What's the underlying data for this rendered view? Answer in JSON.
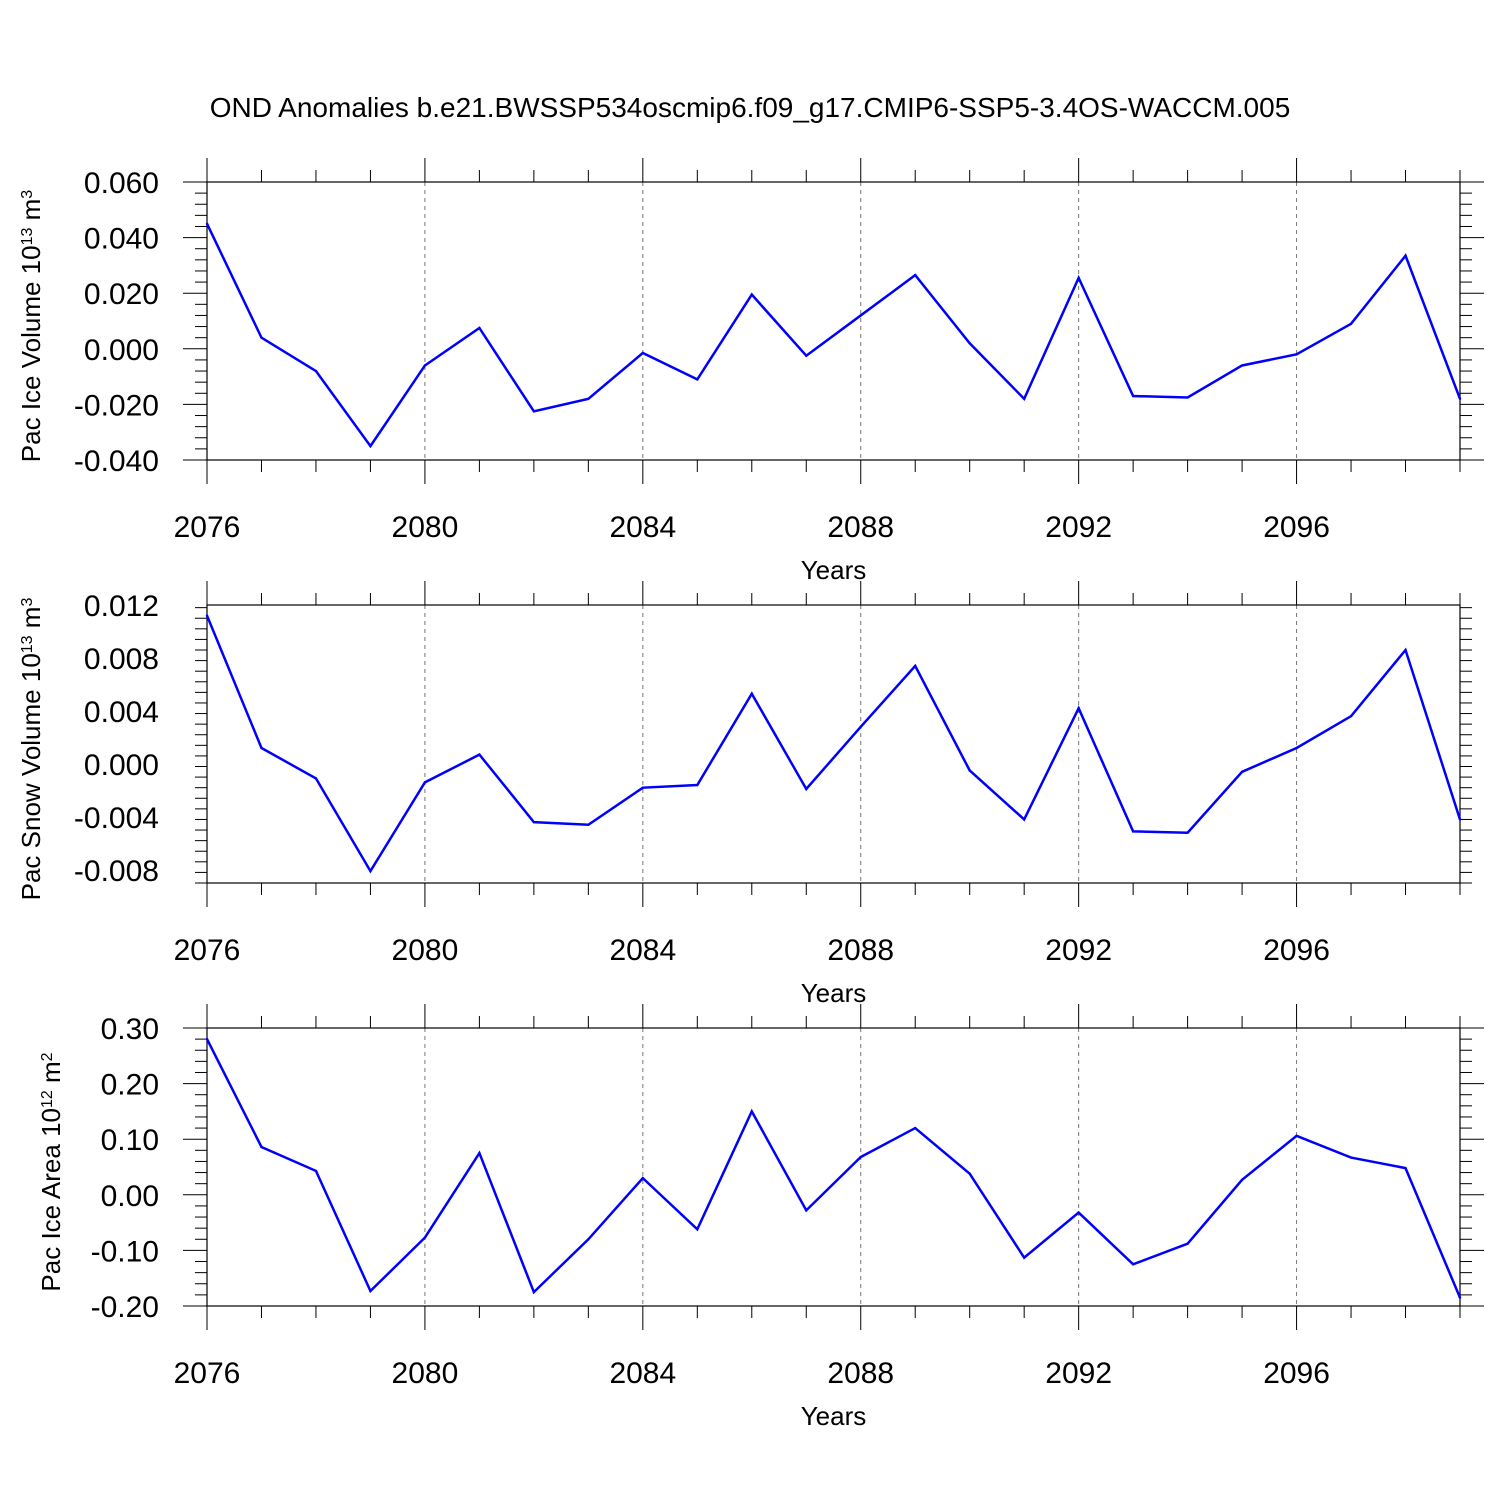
{
  "title": "OND Anomalies b.e21.BWSSP534oscmip6.f09_g17.CMIP6-SSP5-3.4OS-WACCM.005",
  "line_color": "#0000ff",
  "chart_data": [
    {
      "type": "line",
      "name": "ice-volume",
      "ylabel": "Pac Ice Volume 10",
      "ylabel_exp": "13",
      "ylabel_unit": " m",
      "ylabel_unit_exp": "3",
      "xlabel": "Years",
      "xlim": [
        2076,
        2099
      ],
      "ylim": [
        -0.04,
        0.06
      ],
      "yticks": [
        "0.060",
        "0.040",
        "0.020",
        "0.000",
        "-0.020",
        "-0.040"
      ],
      "yvals": [
        0.06,
        0.04,
        0.02,
        0.0,
        -0.02,
        -0.04
      ],
      "xticks": [
        "2076",
        "2080",
        "2084",
        "2088",
        "2092",
        "2096"
      ],
      "xvals": [
        2076,
        2080,
        2084,
        2088,
        2092,
        2096
      ],
      "x": [
        2076,
        2077,
        2078,
        2079,
        2080,
        2081,
        2082,
        2083,
        2084,
        2085,
        2086,
        2087,
        2088,
        2089,
        2090,
        2091,
        2092,
        2093,
        2094,
        2095,
        2096,
        2097,
        2098,
        2099
      ],
      "values": [
        0.045,
        0.004,
        -0.008,
        -0.035,
        -0.006,
        0.0075,
        -0.0225,
        -0.018,
        -0.0015,
        -0.011,
        0.0195,
        -0.0025,
        0.012,
        0.0265,
        0.002,
        -0.018,
        0.0255,
        -0.017,
        -0.0175,
        -0.006,
        -0.002,
        0.009,
        0.0335,
        -0.018
      ]
    },
    {
      "type": "line",
      "name": "snow-volume",
      "ylabel": "Pac Snow Volume 10",
      "ylabel_exp": "13",
      "ylabel_unit": " m",
      "ylabel_unit_exp": "3",
      "xlabel": "Years",
      "xlim": [
        2076,
        2099
      ],
      "ylim": [
        -0.009,
        0.012
      ],
      "yticks": [
        "0.012",
        "0.008",
        "0.004",
        "0.000",
        "-0.004",
        "-0.008"
      ],
      "yvals": [
        0.012,
        0.008,
        0.004,
        0.0,
        -0.004,
        -0.008
      ],
      "xticks": [
        "2076",
        "2080",
        "2084",
        "2088",
        "2092",
        "2096"
      ],
      "xvals": [
        2076,
        2080,
        2084,
        2088,
        2092,
        2096
      ],
      "x": [
        2076,
        2077,
        2078,
        2079,
        2080,
        2081,
        2082,
        2083,
        2084,
        2085,
        2086,
        2087,
        2088,
        2089,
        2090,
        2091,
        2092,
        2093,
        2094,
        2095,
        2096,
        2097,
        2098,
        2099
      ],
      "values": [
        0.0112,
        0.0012,
        -0.0011,
        -0.0081,
        -0.0014,
        0.0007,
        -0.0044,
        -0.0046,
        -0.0018,
        -0.0016,
        0.0053,
        -0.0019,
        0.0028,
        0.0074,
        -0.0005,
        -0.0042,
        0.0042,
        -0.0051,
        -0.0052,
        -0.0006,
        0.0012,
        0.0036,
        0.0086,
        -0.0042
      ]
    },
    {
      "type": "line",
      "name": "ice-area",
      "ylabel": "Pac Ice Area 10",
      "ylabel_exp": "12",
      "ylabel_unit": " m",
      "ylabel_unit_exp": "2",
      "xlabel": "Years",
      "xlim": [
        2076,
        2099
      ],
      "ylim": [
        -0.2,
        0.3
      ],
      "yticks": [
        "0.30",
        "0.20",
        "0.10",
        "0.00",
        "-0.10",
        "-0.20"
      ],
      "yvals": [
        0.3,
        0.2,
        0.1,
        0.0,
        -0.1,
        -0.2
      ],
      "xticks": [
        "2076",
        "2080",
        "2084",
        "2088",
        "2092",
        "2096"
      ],
      "xvals": [
        2076,
        2080,
        2084,
        2088,
        2092,
        2096
      ],
      "x": [
        2076,
        2077,
        2078,
        2079,
        2080,
        2081,
        2082,
        2083,
        2084,
        2085,
        2086,
        2087,
        2088,
        2089,
        2090,
        2091,
        2092,
        2093,
        2094,
        2095,
        2096,
        2097,
        2098,
        2099
      ],
      "values": [
        0.28,
        0.086,
        0.043,
        -0.173,
        -0.077,
        0.075,
        -0.175,
        -0.08,
        0.03,
        -0.062,
        0.15,
        -0.028,
        0.068,
        0.12,
        0.038,
        -0.113,
        -0.032,
        -0.125,
        -0.088,
        0.027,
        0.106,
        0.067,
        0.048,
        -0.185
      ]
    }
  ]
}
